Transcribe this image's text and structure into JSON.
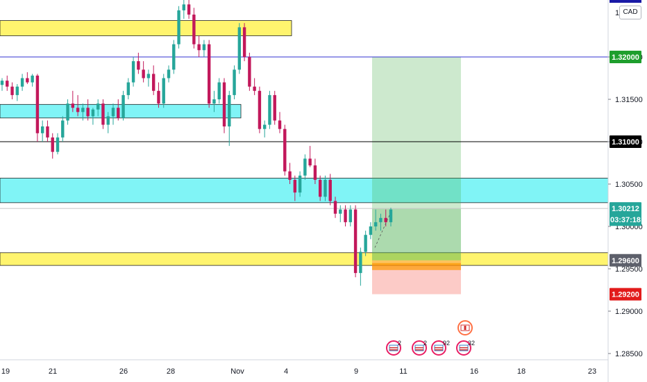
{
  "chart_data": {
    "type": "candlestick",
    "symbol_currency": "CAD",
    "ylim": [
      1.2845,
      1.3248
    ],
    "y_ticks": [
      "1.32000",
      "1.31500",
      "1.31000",
      "1.30500",
      "1.30000",
      "1.29500",
      "1.29000",
      "1.28500"
    ],
    "y_tick_values": [
      1.32,
      1.315,
      1.31,
      1.305,
      1.3,
      1.295,
      1.29,
      1.285
    ],
    "x_ticks": [
      "19",
      "21",
      "26",
      "28",
      "Nov",
      "4",
      "9",
      "11",
      "16",
      "18",
      "23"
    ],
    "price_tags": [
      {
        "label": "1.32000",
        "value": 1.32,
        "color": "#1e9e2d"
      },
      {
        "label": "1.31000",
        "value": 1.31,
        "color": "#000000"
      },
      {
        "label": "1.30212",
        "value": 1.30212,
        "color": "#26a69a"
      },
      {
        "label": "03:37:18",
        "value": 1.3008,
        "color": "#26a69a"
      },
      {
        "label": "1.29600",
        "value": 1.296,
        "color": "#5d606b"
      },
      {
        "label": "1.29200",
        "value": 1.292,
        "color": "#e21b1b"
      }
    ],
    "top_tag_partial": "1.",
    "horizontal_lines": [
      {
        "value": 1.32,
        "color": "#3030d0"
      },
      {
        "value": 1.31,
        "color": "#000000"
      },
      {
        "value": 1.30212,
        "color": "#c8c8c8"
      }
    ],
    "zones": [
      {
        "kind": "supply-demand",
        "color": "#fff46e",
        "from": 1.3225,
        "to": 1.3243
      },
      {
        "kind": "supply-demand",
        "color": "#80f4f6",
        "from": 1.3128,
        "to": 1.3144
      },
      {
        "kind": "supply-demand",
        "color": "#80f4f6",
        "from": 1.3028,
        "to": 1.3057
      },
      {
        "kind": "supply-demand",
        "color": "#fff46e",
        "from": 1.2954,
        "to": 1.2969
      }
    ],
    "long_position": {
      "entry": 1.296,
      "target": 1.32,
      "stop": 1.292
    },
    "event_markers": [
      {
        "country": "US",
        "count": "2"
      },
      {
        "country": "US",
        "count": "2"
      },
      {
        "country": "US",
        "count": "92"
      },
      {
        "country": "CA",
        "count": ""
      },
      {
        "country": "US",
        "count": "32"
      }
    ],
    "candles": [
      [
        1.3167,
        1.3175,
        1.316,
        1.3172
      ],
      [
        1.3172,
        1.3178,
        1.316,
        1.3165
      ],
      [
        1.3165,
        1.317,
        1.315,
        1.3155
      ],
      [
        1.3155,
        1.3168,
        1.3148,
        1.3165
      ],
      [
        1.3165,
        1.318,
        1.316,
        1.3175
      ],
      [
        1.3175,
        1.3182,
        1.3168,
        1.317
      ],
      [
        1.317,
        1.318,
        1.3165,
        1.3178
      ],
      [
        1.3178,
        1.318,
        1.31,
        1.311
      ],
      [
        1.311,
        1.3125,
        1.31,
        1.3118
      ],
      [
        1.3118,
        1.3125,
        1.31,
        1.3105
      ],
      [
        1.3105,
        1.311,
        1.308,
        1.3088
      ],
      [
        1.3088,
        1.311,
        1.3085,
        1.3105
      ],
      [
        1.3105,
        1.313,
        1.31,
        1.3125
      ],
      [
        1.3125,
        1.315,
        1.312,
        1.3145
      ],
      [
        1.3145,
        1.316,
        1.3135,
        1.314
      ],
      [
        1.314,
        1.3155,
        1.313,
        1.3135
      ],
      [
        1.3135,
        1.3145,
        1.3125,
        1.314
      ],
      [
        1.314,
        1.315,
        1.3125,
        1.313
      ],
      [
        1.313,
        1.314,
        1.312,
        1.3138
      ],
      [
        1.3138,
        1.315,
        1.313,
        1.3145
      ],
      [
        1.3145,
        1.315,
        1.3115,
        1.312
      ],
      [
        1.312,
        1.3135,
        1.311,
        1.313
      ],
      [
        1.313,
        1.3145,
        1.312,
        1.314
      ],
      [
        1.314,
        1.315,
        1.3125,
        1.3128
      ],
      [
        1.3128,
        1.316,
        1.3125,
        1.3155
      ],
      [
        1.3155,
        1.3175,
        1.315,
        1.317
      ],
      [
        1.317,
        1.32,
        1.3165,
        1.3195
      ],
      [
        1.3195,
        1.3205,
        1.318,
        1.3185
      ],
      [
        1.3185,
        1.3195,
        1.317,
        1.3175
      ],
      [
        1.3175,
        1.3185,
        1.3165,
        1.318
      ],
      [
        1.318,
        1.319,
        1.3155,
        1.316
      ],
      [
        1.316,
        1.317,
        1.314,
        1.3145
      ],
      [
        1.3145,
        1.318,
        1.314,
        1.3175
      ],
      [
        1.3175,
        1.319,
        1.317,
        1.3185
      ],
      [
        1.3185,
        1.322,
        1.318,
        1.3215
      ],
      [
        1.3215,
        1.326,
        1.321,
        1.3255
      ],
      [
        1.3255,
        1.327,
        1.3245,
        1.3262
      ],
      [
        1.3262,
        1.327,
        1.3245,
        1.325
      ],
      [
        1.325,
        1.3258,
        1.321,
        1.3215
      ],
      [
        1.3215,
        1.3225,
        1.32,
        1.3208
      ],
      [
        1.3208,
        1.322,
        1.32,
        1.3215
      ],
      [
        1.3215,
        1.322,
        1.314,
        1.3145
      ],
      [
        1.3145,
        1.316,
        1.3135,
        1.315
      ],
      [
        1.315,
        1.3175,
        1.3145,
        1.317
      ],
      [
        1.317,
        1.3175,
        1.311,
        1.3118
      ],
      [
        1.3118,
        1.316,
        1.3095,
        1.3155
      ],
      [
        1.3155,
        1.319,
        1.315,
        1.3185
      ],
      [
        1.3185,
        1.324,
        1.318,
        1.3235
      ],
      [
        1.3235,
        1.324,
        1.3195,
        1.32
      ],
      [
        1.32,
        1.3205,
        1.316,
        1.3165
      ],
      [
        1.3165,
        1.3175,
        1.3155,
        1.316
      ],
      [
        1.316,
        1.3165,
        1.311,
        1.3115
      ],
      [
        1.3115,
        1.3125,
        1.3105,
        1.312
      ],
      [
        1.312,
        1.316,
        1.3115,
        1.3155
      ],
      [
        1.3155,
        1.316,
        1.312,
        1.3125
      ],
      [
        1.3125,
        1.3135,
        1.311,
        1.3115
      ],
      [
        1.3115,
        1.312,
        1.306,
        1.3065
      ],
      [
        1.3065,
        1.3075,
        1.305,
        1.3055
      ],
      [
        1.3055,
        1.306,
        1.303,
        1.304
      ],
      [
        1.304,
        1.3065,
        1.3035,
        1.306
      ],
      [
        1.306,
        1.3085,
        1.3055,
        1.308
      ],
      [
        1.308,
        1.3095,
        1.307,
        1.3072
      ],
      [
        1.3072,
        1.308,
        1.305,
        1.3055
      ],
      [
        1.3055,
        1.306,
        1.303,
        1.3035
      ],
      [
        1.3035,
        1.306,
        1.303,
        1.3055
      ],
      [
        1.3055,
        1.3062,
        1.3025,
        1.303
      ],
      [
        1.303,
        1.3035,
        1.301,
        1.3015
      ],
      [
        1.3015,
        1.3025,
        1.3005,
        1.302
      ],
      [
        1.302,
        1.3025,
        1.3,
        1.3005
      ],
      [
        1.3005,
        1.3025,
        1.3,
        1.302
      ],
      [
        1.302,
        1.3025,
        1.294,
        1.2945
      ],
      [
        1.2945,
        1.2975,
        1.293,
        1.297
      ],
      [
        1.297,
        1.2995,
        1.2965,
        1.299
      ],
      [
        1.299,
        1.3005,
        1.2985,
        1.3
      ],
      [
        1.3,
        1.302,
        1.2995,
        1.3005
      ],
      [
        1.3005,
        1.3015,
        1.2995,
        1.301
      ],
      [
        1.301,
        1.302,
        1.3,
        1.3005
      ],
      [
        1.3005,
        1.3022,
        1.3,
        1.302
      ]
    ]
  }
}
